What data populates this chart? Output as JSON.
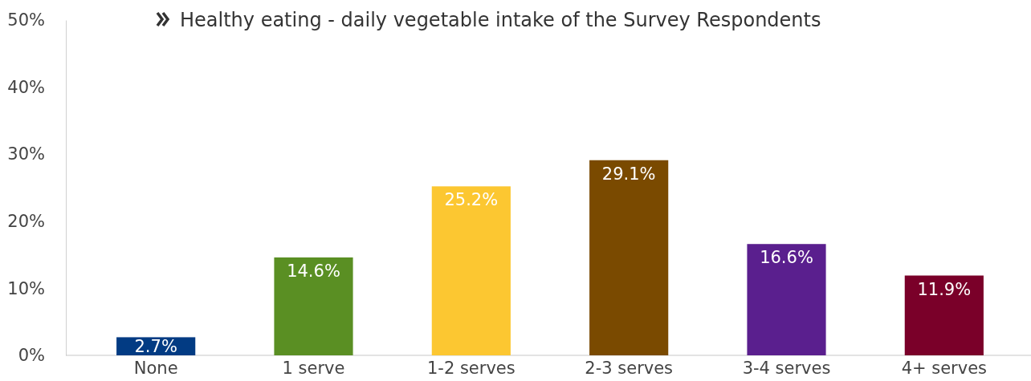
{
  "chart_data": {
    "type": "bar",
    "title": "Healthy eating - daily vegetable intake of the Survey Respondents",
    "categories": [
      "None",
      "1 serve",
      "1-2 serves",
      "2-3 serves",
      "3-4 serves",
      "4+ serves"
    ],
    "values": [
      2.7,
      14.6,
      25.2,
      29.1,
      16.6,
      11.9
    ],
    "colors": [
      "#023b83",
      "#5a8f23",
      "#fcc731",
      "#7a4a00",
      "#5a1f8e",
      "#7a0029"
    ],
    "value_labels": [
      "2.7%",
      "14.6%",
      "25.2%",
      "29.1%",
      "16.6%",
      "11.9%"
    ],
    "ylim": [
      0,
      50
    ],
    "yticks": [
      {
        "value": 0,
        "label": "0%"
      },
      {
        "value": 10,
        "label": "10%"
      },
      {
        "value": 20,
        "label": "20%"
      },
      {
        "value": 30,
        "label": "30%"
      },
      {
        "value": 40,
        "label": "40%"
      },
      {
        "value": 50,
        "label": "50%"
      }
    ],
    "grid": false
  }
}
